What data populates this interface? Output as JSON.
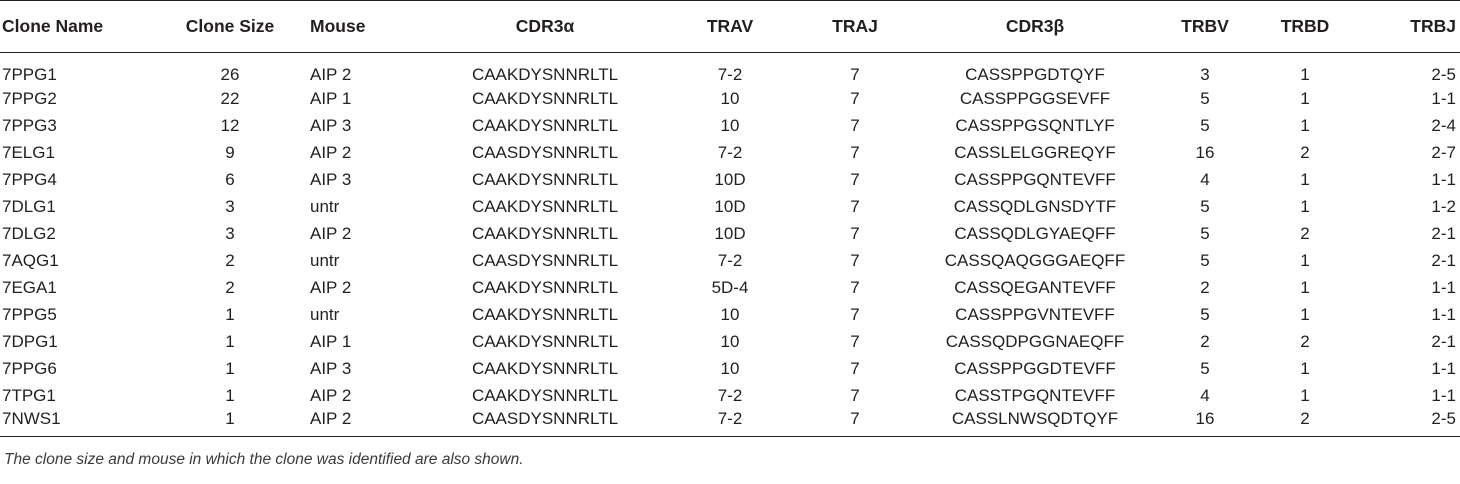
{
  "table": {
    "headers": {
      "clone_name": "Clone Name",
      "clone_size": "Clone Size",
      "mouse": "Mouse",
      "cdr3a": "CDR3α",
      "trav": "TRAV",
      "traj": "TRAJ",
      "cdr3b": "CDR3β",
      "trbv": "TRBV",
      "trbd": "TRBD",
      "trbj": "TRBJ"
    },
    "rows": [
      {
        "clone_name": "7PPG1",
        "clone_size": "26",
        "mouse": "AIP 2",
        "cdr3a": "CAAKDYSNNRLTL",
        "trav": "7-2",
        "traj": "7",
        "cdr3b": "CASSPPGDTQYF",
        "trbv": "3",
        "trbd": "1",
        "trbj": "2-5"
      },
      {
        "clone_name": "7PPG2",
        "clone_size": "22",
        "mouse": "AIP 1",
        "cdr3a": "CAAKDYSNNRLTL",
        "trav": "10",
        "traj": "7",
        "cdr3b": "CASSPPGGSEVFF",
        "trbv": "5",
        "trbd": "1",
        "trbj": "1-1"
      },
      {
        "clone_name": "7PPG3",
        "clone_size": "12",
        "mouse": "AIP 3",
        "cdr3a": "CAAKDYSNNRLTL",
        "trav": "10",
        "traj": "7",
        "cdr3b": "CASSPPGSQNTLYF",
        "trbv": "5",
        "trbd": "1",
        "trbj": "2-4"
      },
      {
        "clone_name": "7ELG1",
        "clone_size": "9",
        "mouse": "AIP 2",
        "cdr3a": "CAASDYSNNRLTL",
        "trav": "7-2",
        "traj": "7",
        "cdr3b": "CASSLELGGREQYF",
        "trbv": "16",
        "trbd": "2",
        "trbj": "2-7"
      },
      {
        "clone_name": "7PPG4",
        "clone_size": "6",
        "mouse": "AIP 3",
        "cdr3a": "CAAKDYSNNRLTL",
        "trav": "10D",
        "traj": "7",
        "cdr3b": "CASSPPGQNTEVFF",
        "trbv": "4",
        "trbd": "1",
        "trbj": "1-1"
      },
      {
        "clone_name": "7DLG1",
        "clone_size": "3",
        "mouse": "untr",
        "cdr3a": "CAAKDYSNNRLTL",
        "trav": "10D",
        "traj": "7",
        "cdr3b": "CASSQDLGNSDYTF",
        "trbv": "5",
        "trbd": "1",
        "trbj": "1-2"
      },
      {
        "clone_name": "7DLG2",
        "clone_size": "3",
        "mouse": "AIP 2",
        "cdr3a": "CAAKDYSNNRLTL",
        "trav": "10D",
        "traj": "7",
        "cdr3b": "CASSQDLGYAEQFF",
        "trbv": "5",
        "trbd": "2",
        "trbj": "2-1"
      },
      {
        "clone_name": "7AQG1",
        "clone_size": "2",
        "mouse": "untr",
        "cdr3a": "CAASDYSNNRLTL",
        "trav": "7-2",
        "traj": "7",
        "cdr3b": "CASSQAQGGGAEQFF",
        "trbv": "5",
        "trbd": "1",
        "trbj": "2-1"
      },
      {
        "clone_name": "7EGA1",
        "clone_size": "2",
        "mouse": "AIP 2",
        "cdr3a": "CAAKDYSNNRLTL",
        "trav": "5D-4",
        "traj": "7",
        "cdr3b": "CASSQEGANTEVFF",
        "trbv": "2",
        "trbd": "1",
        "trbj": "1-1"
      },
      {
        "clone_name": "7PPG5",
        "clone_size": "1",
        "mouse": "untr",
        "cdr3a": "CAAKDYSNNRLTL",
        "trav": "10",
        "traj": "7",
        "cdr3b": "CASSPPGVNTEVFF",
        "trbv": "5",
        "trbd": "1",
        "trbj": "1-1"
      },
      {
        "clone_name": "7DPG1",
        "clone_size": "1",
        "mouse": "AIP 1",
        "cdr3a": "CAAKDYSNNRLTL",
        "trav": "10",
        "traj": "7",
        "cdr3b": "CASSQDPGGNAEQFF",
        "trbv": "2",
        "trbd": "2",
        "trbj": "2-1"
      },
      {
        "clone_name": "7PPG6",
        "clone_size": "1",
        "mouse": "AIP 3",
        "cdr3a": "CAAKDYSNNRLTL",
        "trav": "10",
        "traj": "7",
        "cdr3b": "CASSPPGGDTEVFF",
        "trbv": "5",
        "trbd": "1",
        "trbj": "1-1"
      },
      {
        "clone_name": "7TPG1",
        "clone_size": "1",
        "mouse": "AIP 2",
        "cdr3a": "CAAKDYSNNRLTL",
        "trav": "7-2",
        "traj": "7",
        "cdr3b": "CASSTPGQNTEVFF",
        "trbv": "4",
        "trbd": "1",
        "trbj": "1-1"
      },
      {
        "clone_name": "7NWS1",
        "clone_size": "1",
        "mouse": "AIP 2",
        "cdr3a": "CAASDYSNNRLTL",
        "trav": "7-2",
        "traj": "7",
        "cdr3b": "CASSLNWSQDTQYF",
        "trbv": "16",
        "trbd": "2",
        "trbj": "2-5"
      }
    ]
  },
  "footnote": "The clone size and mouse in which the clone was identified are also shown."
}
